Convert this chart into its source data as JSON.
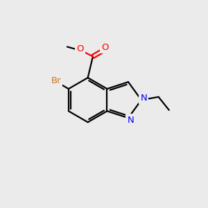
{
  "background_color": "#ebebeb",
  "bond_color": "#000000",
  "atom_colors": {
    "Br": "#cc7722",
    "O": "#ff0000",
    "N": "#0000ff",
    "C": "#000000"
  },
  "figsize": [
    3.0,
    3.0
  ],
  "dpi": 100
}
